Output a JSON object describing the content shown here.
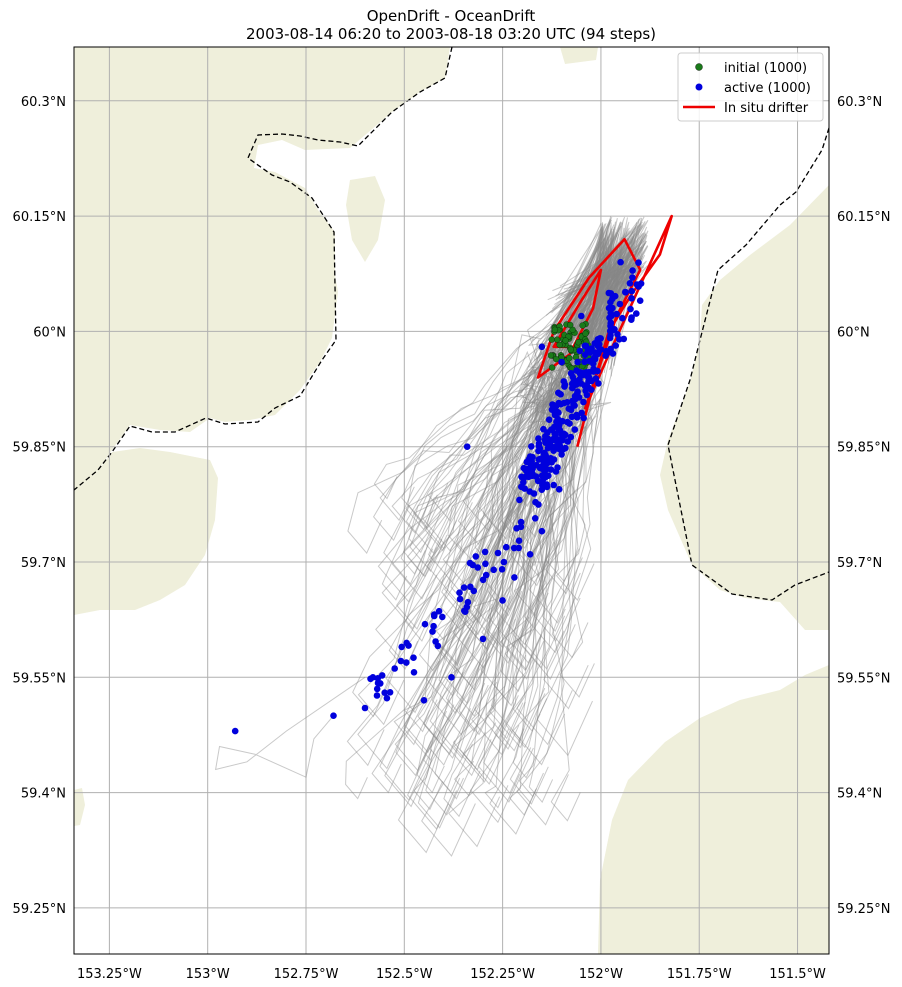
{
  "title": {
    "line1": "OpenDrift - OceanDrift",
    "line2": "2003-08-14 06:20 to 2003-08-18 03:20 UTC (94 steps)"
  },
  "map": {
    "lon_range": [
      -153.34,
      -151.42
    ],
    "lat_range": [
      59.19,
      60.37
    ],
    "land_color": "#efefdb",
    "ocean_color": "#ffffff",
    "grid_color": "#b0b0b0",
    "border_style": "dashed black"
  },
  "axes": {
    "x_ticks": [
      "153.25°W",
      "153°W",
      "152.75°W",
      "152.5°W",
      "152.25°W",
      "152°W",
      "151.75°W",
      "151.5°W"
    ],
    "x_tick_values": [
      -153.25,
      -153.0,
      -152.75,
      -152.5,
      -152.25,
      -152.0,
      -151.75,
      -151.5
    ],
    "y_ticks": [
      "60.3°N",
      "60.15°N",
      "60°N",
      "59.85°N",
      "59.7°N",
      "59.55°N",
      "59.4°N",
      "59.25°N"
    ],
    "y_tick_values": [
      60.3,
      60.15,
      60.0,
      59.85,
      59.7,
      59.55,
      59.4,
      59.25
    ]
  },
  "legend": {
    "placement": "top-right",
    "items": [
      {
        "label": "initial (1000)",
        "color": "#1a7a1a",
        "kind": "marker"
      },
      {
        "label": "active (1000)",
        "color": "#0000dd",
        "kind": "marker"
      },
      {
        "label": "In situ drifter",
        "color": "#ee0000",
        "kind": "line"
      }
    ]
  },
  "chart_data": {
    "type": "scatter",
    "title": "OpenDrift - OceanDrift",
    "subtitle": "2003-08-14 06:20 to 2003-08-18 03:20 UTC (94 steps)",
    "series": [
      {
        "name": "initial (1000)",
        "color": "#1a7a1a",
        "center": [
          -152.08,
          59.98
        ],
        "approx_count": 1000
      },
      {
        "name": "active (1000)",
        "color": "#0000dd",
        "approx_count": 1000,
        "sample_points": [
          [
            -152.93,
            59.48
          ],
          [
            -152.68,
            59.5
          ],
          [
            -152.6,
            59.51
          ],
          [
            -152.58,
            59.55
          ],
          [
            -152.55,
            59.53
          ],
          [
            -152.45,
            59.52
          ],
          [
            -152.38,
            59.55
          ],
          [
            -152.34,
            59.85
          ],
          [
            -152.3,
            59.6
          ],
          [
            -152.25,
            59.65
          ],
          [
            -152.22,
            59.68
          ],
          [
            -152.18,
            59.71
          ],
          [
            -152.15,
            59.74
          ],
          [
            -152.12,
            59.8
          ],
          [
            -152.1,
            59.84
          ],
          [
            -152.08,
            59.88
          ],
          [
            -152.06,
            59.92
          ],
          [
            -152.1,
            59.96
          ],
          [
            -152.15,
            59.98
          ],
          [
            -152.05,
            60.02
          ],
          [
            -151.98,
            60.05
          ],
          [
            -151.92,
            60.07
          ],
          [
            -151.9,
            60.04
          ],
          [
            -151.95,
            60.09
          ]
        ]
      },
      {
        "name": "In situ drifter",
        "color": "#ee0000",
        "points": [
          [
            -152.06,
            59.85
          ],
          [
            -152.02,
            59.93
          ],
          [
            -151.98,
            60.0
          ],
          [
            -151.92,
            60.05
          ],
          [
            -151.85,
            60.1
          ],
          [
            -151.82,
            60.15
          ],
          [
            -151.9,
            60.06
          ],
          [
            -151.98,
            59.97
          ],
          [
            -152.04,
            59.9
          ],
          [
            -151.96,
            60.02
          ],
          [
            -151.9,
            60.08
          ],
          [
            -151.94,
            60.12
          ],
          [
            -152.03,
            60.07
          ],
          [
            -152.12,
            60.0
          ],
          [
            -152.16,
            59.94
          ],
          [
            -152.08,
            59.97
          ],
          [
            -152.02,
            60.03
          ],
          [
            -152.0,
            60.08
          ],
          [
            -152.05,
            60.04
          ],
          [
            -152.12,
            59.98
          ],
          [
            -152.06,
            59.98
          ]
        ]
      }
    ],
    "trajectory_envelope": {
      "color": "#808080",
      "lon_range": [
        -152.95,
        -151.82
      ],
      "lat_range": [
        59.39,
        60.15
      ]
    },
    "xlim": [
      -153.34,
      -151.42
    ],
    "ylim": [
      59.19,
      60.37
    ],
    "grid": true,
    "legend_position": "top-right"
  }
}
